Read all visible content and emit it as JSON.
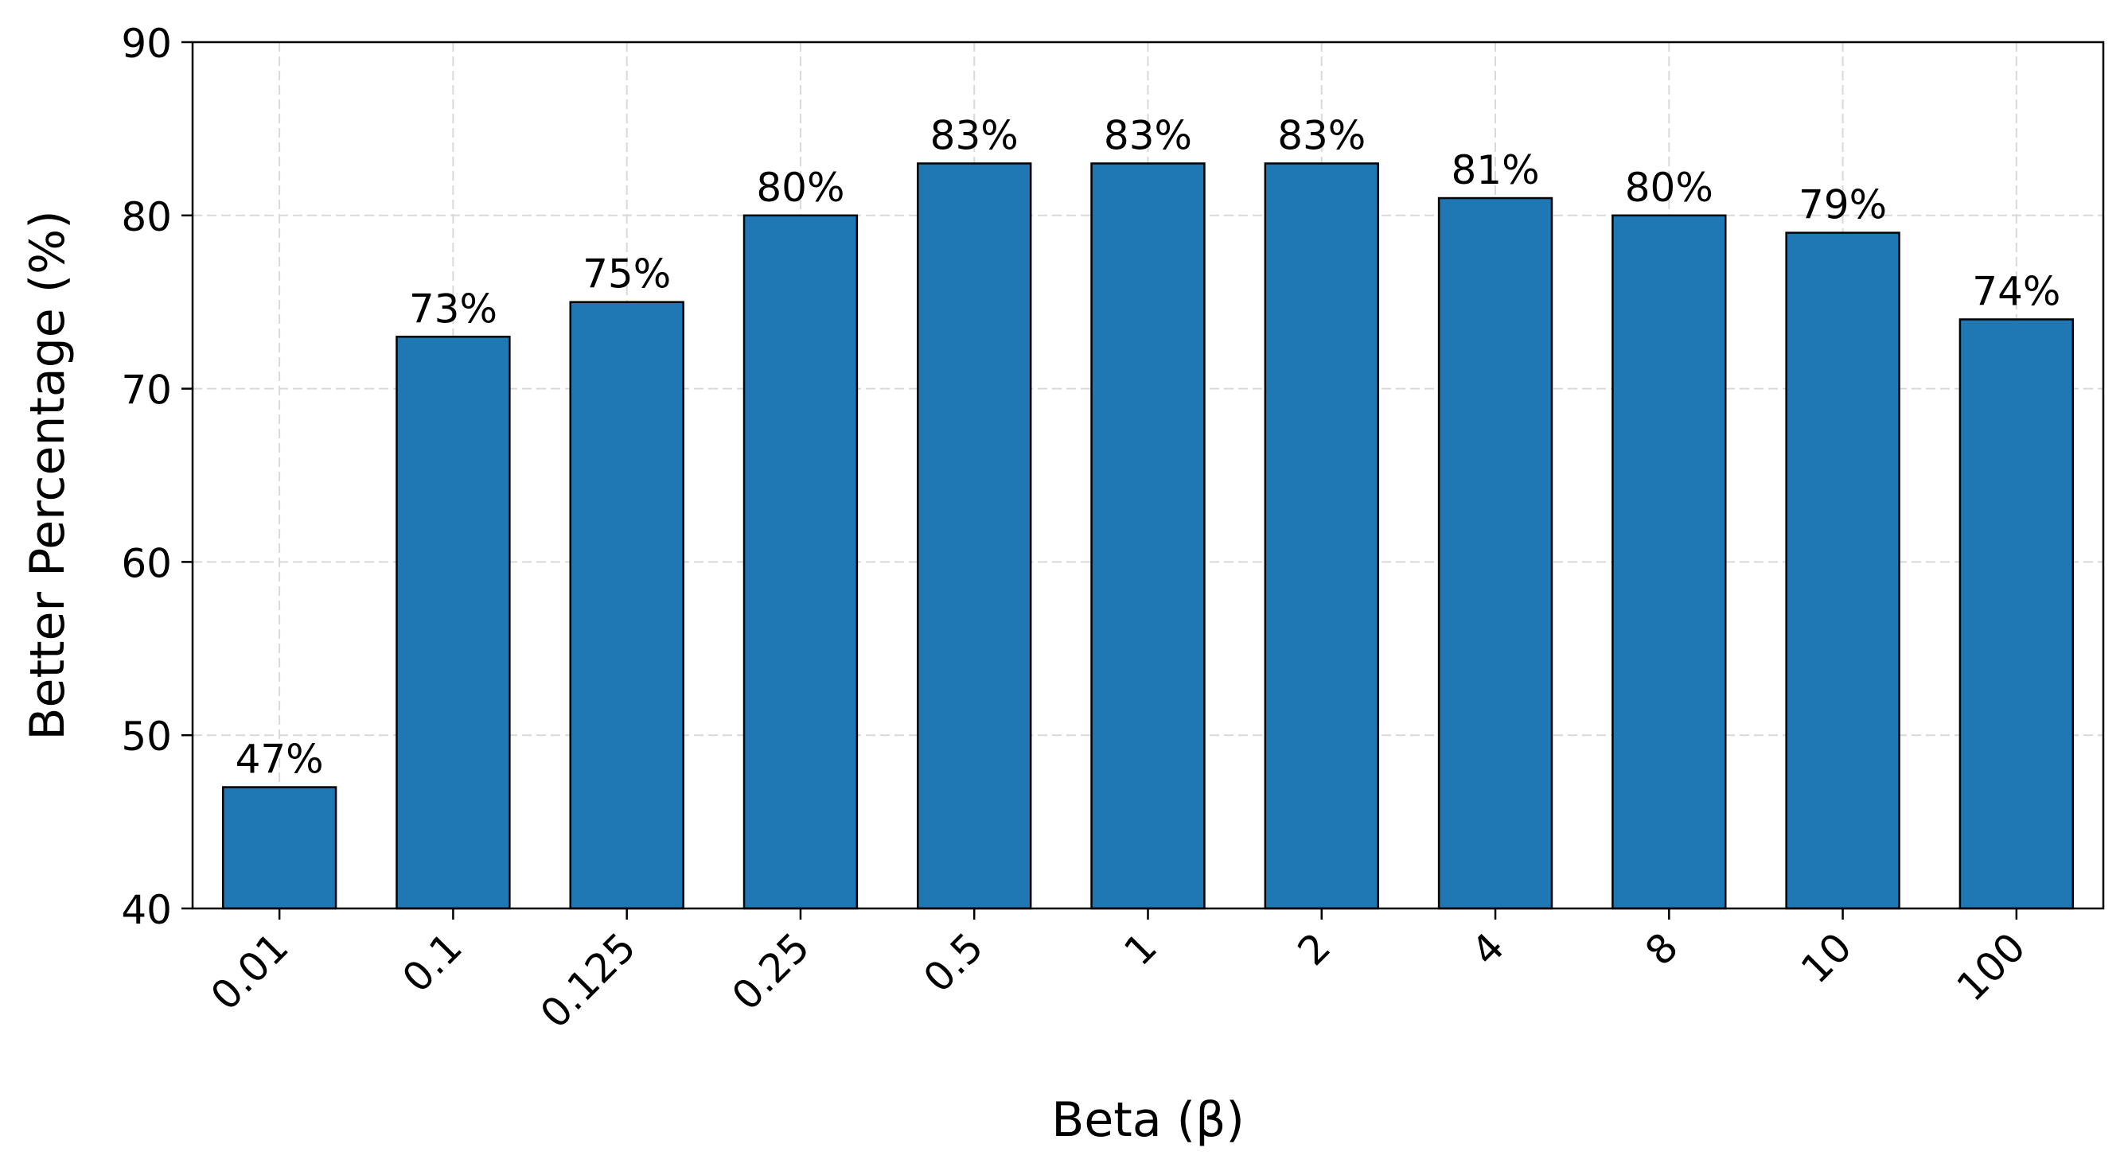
{
  "chart_data": {
    "type": "bar",
    "categories": [
      "0.01",
      "0.1",
      "0.125",
      "0.25",
      "0.5",
      "1",
      "2",
      "4",
      "8",
      "10",
      "100"
    ],
    "values": [
      47,
      73,
      75,
      80,
      83,
      83,
      83,
      81,
      80,
      79,
      74
    ],
    "data_labels": [
      "47%",
      "73%",
      "75%",
      "80%",
      "83%",
      "83%",
      "83%",
      "81%",
      "80%",
      "79%",
      "74%"
    ],
    "xlabel": "Beta (β)",
    "ylabel": "Better Percentage (%)",
    "ylim": [
      40,
      90
    ],
    "yticks": [
      40,
      50,
      60,
      70,
      80,
      90
    ],
    "grid": true,
    "colors": {
      "bar_fill": "#1f77b4",
      "bar_edge": "#000000",
      "grid": "#d9d9d9",
      "axes": "#000000"
    }
  }
}
